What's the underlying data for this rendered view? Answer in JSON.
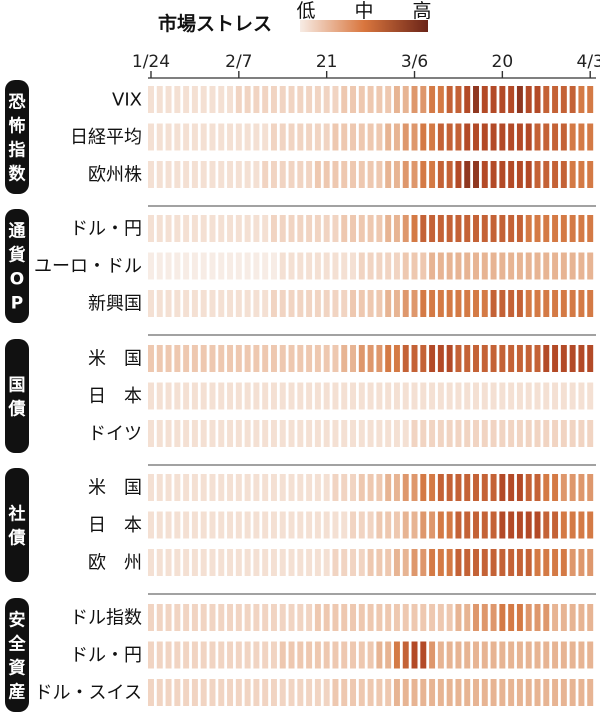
{
  "legend": {
    "title": "市場ストレス",
    "low": "低",
    "mid": "中",
    "high": "高"
  },
  "chart_data": {
    "type": "heatmap",
    "value_range": [
      0,
      10
    ],
    "color_low": "#f7ece5",
    "color_high": "#6b2418",
    "x_tick_labels": [
      "1/24",
      "2/7",
      "21",
      "3/6",
      "20",
      "4/3"
    ],
    "x_tick_index": [
      0,
      10,
      20,
      30,
      40,
      50
    ],
    "columns_count": 51,
    "groups": [
      {
        "label": "恐怖指数",
        "rows": [
          {
            "label": "VIX",
            "values": [
              1,
              1,
              1,
              1,
              1,
              1,
              1,
              1,
              1,
              1,
              2,
              2,
              2,
              2,
              2,
              2,
              2,
              2,
              2,
              2,
              2,
              2,
              3,
              3,
              3,
              3,
              3,
              3,
              4,
              4,
              5,
              5,
              6,
              6,
              7,
              7,
              8,
              9,
              8,
              8,
              8,
              8,
              9,
              8,
              8,
              7,
              7,
              7,
              7,
              6,
              6
            ]
          },
          {
            "label": "日経平均",
            "values": [
              1,
              1,
              1,
              1,
              1,
              1,
              1,
              1,
              1,
              1,
              1,
              1,
              1,
              1,
              2,
              2,
              2,
              2,
              2,
              2,
              2,
              3,
              3,
              3,
              3,
              3,
              3,
              4,
              4,
              5,
              5,
              6,
              6,
              7,
              7,
              7,
              8,
              8,
              8,
              8,
              8,
              8,
              8,
              8,
              7,
              7,
              7,
              7,
              6,
              6,
              6
            ]
          },
          {
            "label": "欧州株",
            "values": [
              1,
              1,
              1,
              1,
              1,
              1,
              1,
              1,
              1,
              1,
              1,
              1,
              1,
              2,
              2,
              2,
              2,
              2,
              2,
              3,
              3,
              3,
              3,
              3,
              3,
              3,
              3,
              4,
              4,
              5,
              5,
              6,
              6,
              7,
              7,
              8,
              9,
              9,
              8,
              8,
              8,
              8,
              8,
              8,
              7,
              7,
              7,
              7,
              6,
              6,
              6
            ]
          }
        ]
      },
      {
        "label": "通貨OP",
        "rows": [
          {
            "label": "ドル・円",
            "values": [
              1,
              1,
              1,
              1,
              1,
              1,
              1,
              1,
              1,
              1,
              1,
              1,
              1,
              1,
              2,
              2,
              2,
              2,
              2,
              2,
              2,
              2,
              3,
              3,
              3,
              3,
              3,
              4,
              4,
              5,
              6,
              7,
              7,
              7,
              7,
              7,
              7,
              7,
              7,
              7,
              7,
              7,
              7,
              6,
              6,
              6,
              6,
              6,
              6,
              6,
              6
            ]
          },
          {
            "label": "ユーロ・ドル",
            "values": [
              0,
              0,
              0,
              0,
              0,
              0,
              0,
              0,
              0,
              0,
              0,
              0,
              0,
              0,
              0,
              1,
              1,
              1,
              1,
              1,
              1,
              1,
              1,
              1,
              2,
              2,
              2,
              2,
              2,
              3,
              3,
              3,
              4,
              4,
              4,
              4,
              4,
              4,
              4,
              4,
              4,
              4,
              4,
              4,
              4,
              4,
              4,
              4,
              4,
              4,
              4
            ]
          },
          {
            "label": "新興国",
            "values": [
              1,
              1,
              1,
              1,
              1,
              1,
              1,
              1,
              1,
              1,
              1,
              1,
              1,
              1,
              2,
              2,
              2,
              2,
              2,
              2,
              2,
              2,
              2,
              3,
              3,
              3,
              3,
              4,
              4,
              5,
              5,
              6,
              6,
              6,
              6,
              6,
              6,
              6,
              6,
              7,
              7,
              7,
              7,
              6,
              6,
              6,
              6,
              6,
              6,
              6,
              6
            ]
          }
        ]
      },
      {
        "label": "国債",
        "rows": [
          {
            "label": "米　国",
            "values": [
              3,
              3,
              3,
              3,
              3,
              3,
              3,
              3,
              3,
              3,
              3,
              3,
              3,
              3,
              3,
              3,
              3,
              3,
              3,
              3,
              3,
              3,
              4,
              4,
              5,
              5,
              5,
              6,
              6,
              7,
              7,
              7,
              8,
              8,
              8,
              7,
              7,
              7,
              7,
              7,
              7,
              7,
              7,
              7,
              7,
              8,
              8,
              8,
              8,
              8,
              8
            ]
          },
          {
            "label": "日　本",
            "values": [
              1,
              1,
              1,
              1,
              1,
              1,
              1,
              1,
              1,
              1,
              1,
              1,
              1,
              1,
              1,
              1,
              1,
              1,
              1,
              1,
              1,
              1,
              1,
              1,
              1,
              1,
              1,
              1,
              1,
              1,
              1,
              1,
              1,
              1,
              1,
              1,
              1,
              1,
              1,
              1,
              1,
              1,
              1,
              1,
              1,
              1,
              1,
              1,
              1,
              1,
              1
            ]
          },
          {
            "label": "ドイツ",
            "values": [
              1,
              1,
              1,
              1,
              1,
              1,
              1,
              1,
              1,
              1,
              1,
              1,
              1,
              1,
              1,
              1,
              1,
              1,
              1,
              1,
              1,
              1,
              1,
              1,
              1,
              1,
              1,
              1,
              1,
              1,
              2,
              2,
              2,
              2,
              2,
              2,
              2,
              2,
              2,
              2,
              2,
              2,
              2,
              2,
              2,
              2,
              2,
              2,
              2,
              2,
              2
            ]
          }
        ]
      },
      {
        "label": "社債",
        "rows": [
          {
            "label": "米　国",
            "values": [
              1,
              1,
              1,
              1,
              1,
              1,
              1,
              1,
              1,
              1,
              1,
              1,
              1,
              1,
              1,
              1,
              1,
              1,
              1,
              1,
              1,
              2,
              2,
              2,
              3,
              3,
              3,
              4,
              4,
              5,
              5,
              6,
              6,
              7,
              7,
              7,
              7,
              7,
              7,
              7,
              8,
              8,
              8,
              7,
              7,
              6,
              6,
              5,
              5,
              5,
              5
            ]
          },
          {
            "label": "日　本",
            "values": [
              1,
              1,
              1,
              1,
              1,
              1,
              1,
              1,
              1,
              1,
              1,
              1,
              1,
              1,
              1,
              1,
              1,
              1,
              1,
              1,
              1,
              1,
              1,
              2,
              2,
              2,
              3,
              3,
              3,
              4,
              4,
              5,
              5,
              6,
              6,
              7,
              7,
              7,
              7,
              7,
              8,
              8,
              8,
              8,
              8,
              7,
              7,
              6,
              6,
              6,
              6
            ]
          },
          {
            "label": "欧　州",
            "values": [
              1,
              1,
              1,
              1,
              1,
              1,
              1,
              1,
              1,
              1,
              1,
              1,
              1,
              1,
              1,
              1,
              1,
              1,
              1,
              1,
              1,
              2,
              2,
              2,
              2,
              3,
              3,
              3,
              4,
              4,
              5,
              5,
              6,
              6,
              6,
              7,
              7,
              7,
              7,
              7,
              7,
              7,
              7,
              7,
              6,
              6,
              6,
              6,
              5,
              5,
              5
            ]
          }
        ]
      },
      {
        "label": "安全資産",
        "rows": [
          {
            "label": "ドル指数",
            "values": [
              2,
              2,
              2,
              2,
              2,
              2,
              2,
              2,
              2,
              2,
              2,
              2,
              2,
              2,
              2,
              2,
              2,
              2,
              2,
              3,
              3,
              3,
              3,
              3,
              3,
              3,
              3,
              3,
              3,
              3,
              3,
              3,
              3,
              3,
              3,
              4,
              4,
              5,
              5,
              5,
              6,
              6,
              6,
              5,
              5,
              5,
              4,
              4,
              4,
              4,
              4
            ]
          },
          {
            "label": "ドル・円",
            "values": [
              2,
              2,
              2,
              2,
              2,
              2,
              2,
              2,
              2,
              2,
              2,
              2,
              2,
              2,
              2,
              3,
              3,
              3,
              3,
              3,
              3,
              3,
              3,
              3,
              3,
              3,
              4,
              4,
              6,
              7,
              8,
              8,
              5,
              4,
              4,
              4,
              4,
              4,
              4,
              4,
              4,
              4,
              4,
              4,
              4,
              4,
              4,
              4,
              4,
              4,
              4
            ]
          },
          {
            "label": "ドル・スイス",
            "values": [
              2,
              2,
              2,
              2,
              2,
              2,
              2,
              2,
              2,
              2,
              2,
              2,
              2,
              2,
              2,
              2,
              2,
              2,
              2,
              2,
              2,
              3,
              3,
              3,
              3,
              3,
              3,
              3,
              4,
              4,
              4,
              4,
              4,
              4,
              4,
              4,
              4,
              4,
              4,
              4,
              4,
              4,
              4,
              4,
              4,
              4,
              4,
              4,
              4,
              4,
              4
            ]
          }
        ]
      }
    ]
  }
}
